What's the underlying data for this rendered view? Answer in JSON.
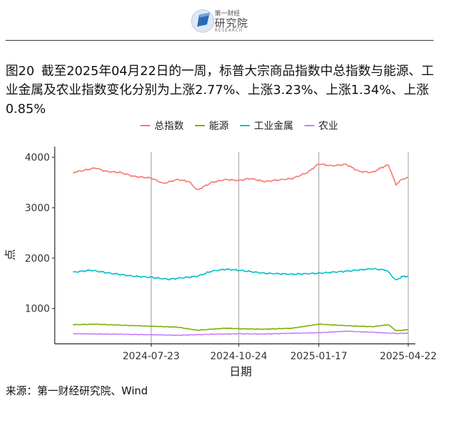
{
  "header": {
    "logo_top_text": "第一财经",
    "logo_name": "研究院",
    "logo_sub_text": "RESEARCH"
  },
  "caption": {
    "figure_no": "图20",
    "text": "截至2025年04月22日的一周，标普大宗商品指数中总指数与能源、工业金属及农业指数变化分别为上涨2.77%、上涨3.23%、上涨1.34%、上涨0.85%"
  },
  "source": "来源：第一财经研究院、Wind",
  "colors": {
    "total": "#F8766D",
    "energy": "#7CAE00",
    "metal": "#00BFC4",
    "agri": "#C77CFF",
    "grid": "#9e9e9e"
  },
  "chart_data": {
    "type": "line",
    "title": "",
    "xlabel": "日期",
    "ylabel": "点",
    "x_range": [
      "2024-05-01",
      "2025-04-22"
    ],
    "ylim": [
      300,
      4100
    ],
    "y_ticks": [
      1000,
      2000,
      3000,
      4000
    ],
    "x_ticks": [
      "2024-07-23",
      "2024-10-24",
      "2025-01-17",
      "2025-04-22"
    ],
    "grid": "vertical lines at x ticks",
    "legend_position": "top",
    "series": [
      {
        "name": "总指数",
        "color_key": "total",
        "points": [
          [
            "2024-05-01",
            3700
          ],
          [
            "2024-05-15",
            3750
          ],
          [
            "2024-05-25",
            3790
          ],
          [
            "2024-06-05",
            3720
          ],
          [
            "2024-06-20",
            3700
          ],
          [
            "2024-07-05",
            3620
          ],
          [
            "2024-07-23",
            3590
          ],
          [
            "2024-08-05",
            3480
          ],
          [
            "2024-08-20",
            3560
          ],
          [
            "2024-09-01",
            3520
          ],
          [
            "2024-09-10",
            3350
          ],
          [
            "2024-09-25",
            3500
          ],
          [
            "2024-10-10",
            3560
          ],
          [
            "2024-10-24",
            3540
          ],
          [
            "2024-11-05",
            3580
          ],
          [
            "2024-11-20",
            3520
          ],
          [
            "2024-12-05",
            3550
          ],
          [
            "2024-12-20",
            3580
          ],
          [
            "2025-01-05",
            3700
          ],
          [
            "2025-01-17",
            3870
          ],
          [
            "2025-01-31",
            3830
          ],
          [
            "2025-02-15",
            3860
          ],
          [
            "2025-03-01",
            3720
          ],
          [
            "2025-03-15",
            3700
          ],
          [
            "2025-03-25",
            3800
          ],
          [
            "2025-04-01",
            3850
          ],
          [
            "2025-04-06",
            3600
          ],
          [
            "2025-04-09",
            3460
          ],
          [
            "2025-04-15",
            3560
          ],
          [
            "2025-04-22",
            3600
          ]
        ]
      },
      {
        "name": "能源",
        "color_key": "energy",
        "points": [
          [
            "2024-05-01",
            680
          ],
          [
            "2024-05-25",
            690
          ],
          [
            "2024-06-20",
            670
          ],
          [
            "2024-07-23",
            650
          ],
          [
            "2024-08-20",
            630
          ],
          [
            "2024-09-10",
            570
          ],
          [
            "2024-10-10",
            610
          ],
          [
            "2024-10-24",
            600
          ],
          [
            "2024-11-20",
            590
          ],
          [
            "2024-12-20",
            610
          ],
          [
            "2025-01-17",
            690
          ],
          [
            "2025-02-15",
            660
          ],
          [
            "2025-03-15",
            640
          ],
          [
            "2025-04-01",
            680
          ],
          [
            "2025-04-09",
            560
          ],
          [
            "2025-04-22",
            580
          ]
        ]
      },
      {
        "name": "工业金属",
        "color_key": "metal",
        "points": [
          [
            "2024-05-01",
            1720
          ],
          [
            "2024-05-20",
            1760
          ],
          [
            "2024-06-10",
            1700
          ],
          [
            "2024-07-05",
            1640
          ],
          [
            "2024-07-23",
            1620
          ],
          [
            "2024-08-10",
            1580
          ],
          [
            "2024-09-10",
            1640
          ],
          [
            "2024-09-25",
            1740
          ],
          [
            "2024-10-10",
            1780
          ],
          [
            "2024-10-24",
            1760
          ],
          [
            "2024-11-20",
            1700
          ],
          [
            "2024-12-20",
            1680
          ],
          [
            "2025-01-17",
            1700
          ],
          [
            "2025-02-15",
            1740
          ],
          [
            "2025-03-15",
            1790
          ],
          [
            "2025-03-30",
            1760
          ],
          [
            "2025-04-09",
            1560
          ],
          [
            "2025-04-15",
            1630
          ],
          [
            "2025-04-22",
            1640
          ]
        ]
      },
      {
        "name": "农业",
        "color_key": "agri",
        "points": [
          [
            "2024-05-01",
            500
          ],
          [
            "2024-06-20",
            490
          ],
          [
            "2024-07-23",
            480
          ],
          [
            "2024-08-20",
            470
          ],
          [
            "2024-09-25",
            490
          ],
          [
            "2024-10-24",
            500
          ],
          [
            "2024-11-20",
            495
          ],
          [
            "2024-12-20",
            510
          ],
          [
            "2025-01-17",
            520
          ],
          [
            "2025-02-15",
            550
          ],
          [
            "2025-03-15",
            530
          ],
          [
            "2025-04-09",
            505
          ],
          [
            "2025-04-22",
            510
          ]
        ]
      }
    ]
  }
}
